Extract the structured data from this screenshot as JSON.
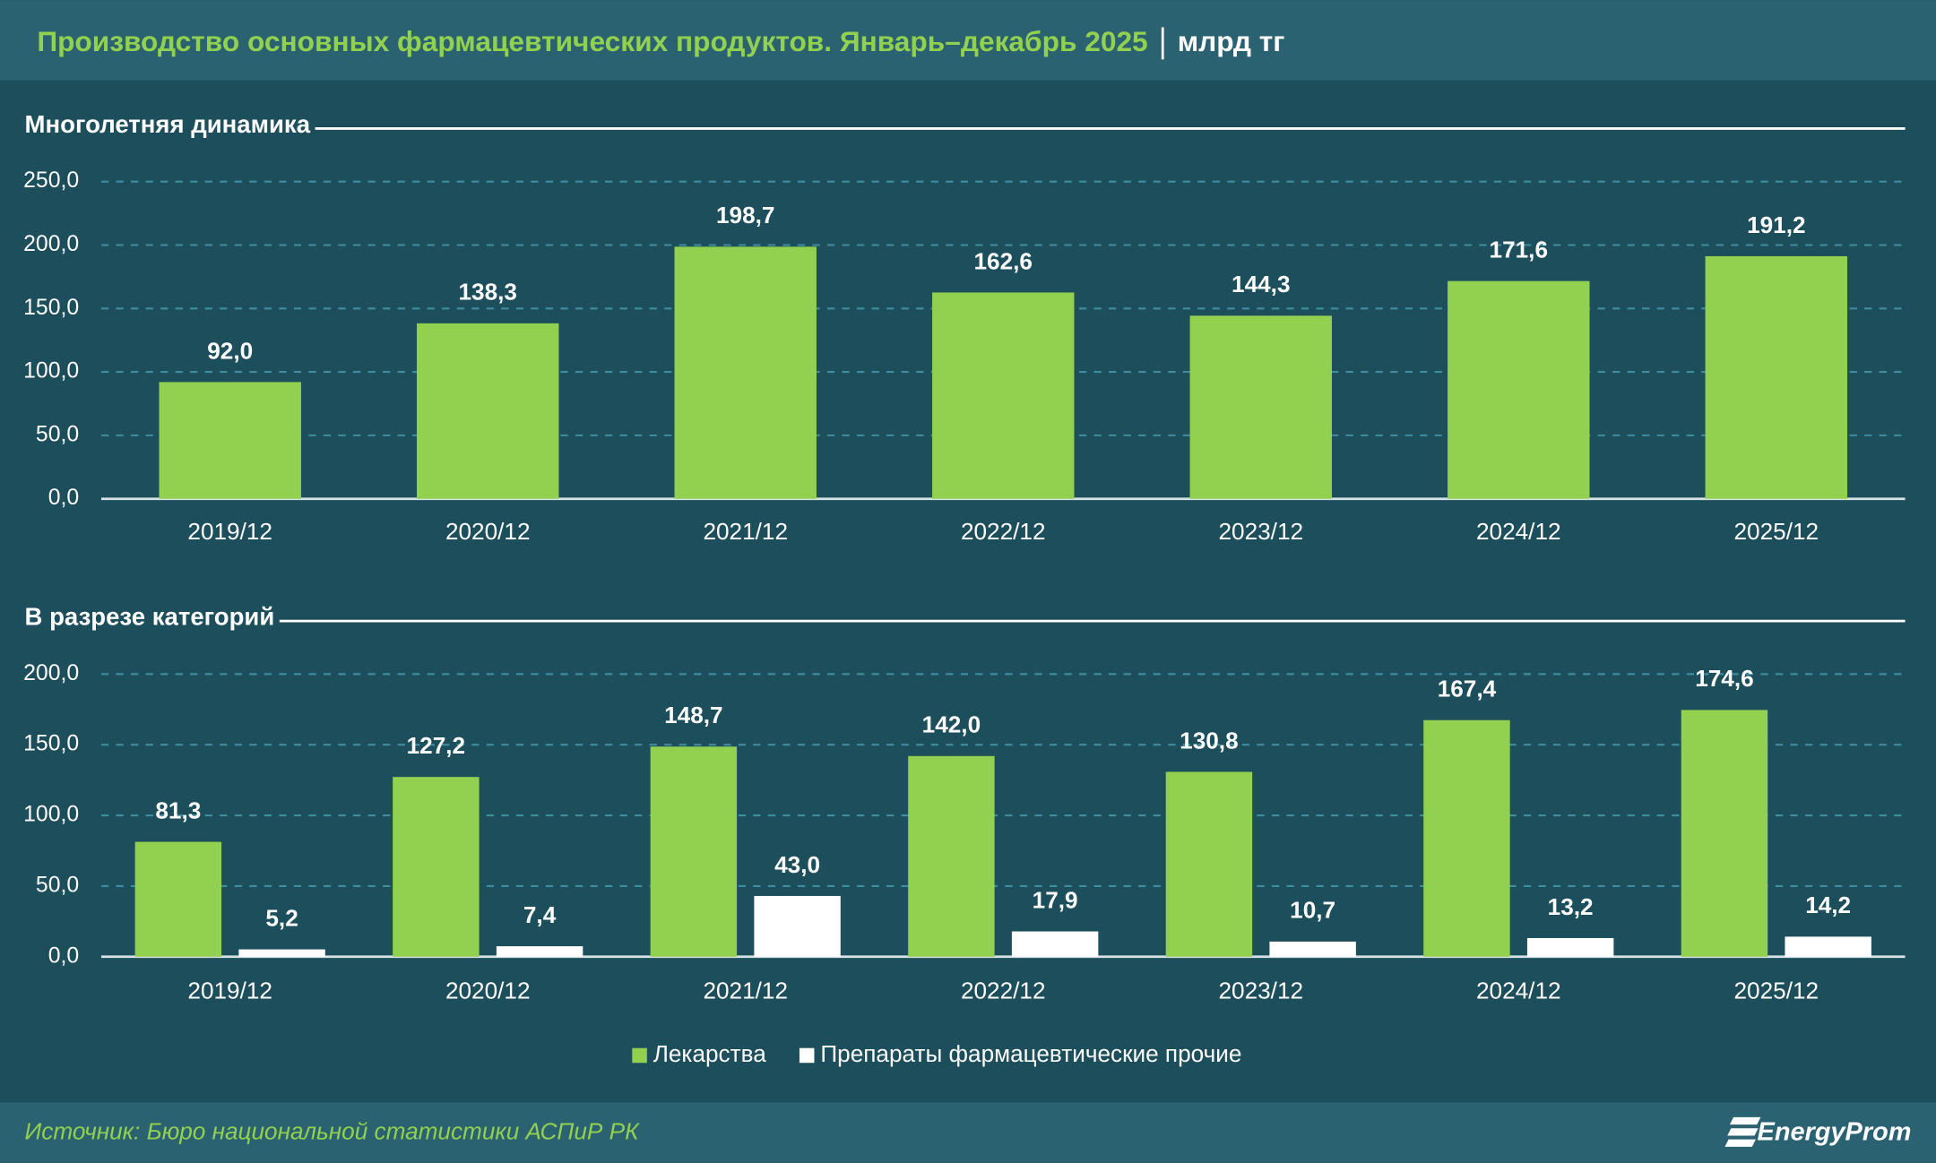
{
  "header": {
    "title": "Производство основных фармацевтических продуктов. Январь–декабрь 2025",
    "unit": "млрд тг"
  },
  "chart_data": [
    {
      "type": "bar",
      "title": "Многолетняя динамика",
      "categories": [
        "2019/12",
        "2020/12",
        "2021/12",
        "2022/12",
        "2023/12",
        "2024/12",
        "2025/12"
      ],
      "values": [
        92.0,
        138.3,
        198.7,
        162.6,
        144.3,
        171.6,
        191.2
      ],
      "value_labels": [
        "92,0",
        "138,3",
        "198,7",
        "162,6",
        "144,3",
        "171,6",
        "191,2"
      ],
      "color": "#92d050",
      "ylim": [
        0,
        250
      ],
      "yticks": [
        {
          "value": 0,
          "label": "0,0"
        },
        {
          "value": 50,
          "label": "50,0"
        },
        {
          "value": 100,
          "label": "100,0"
        },
        {
          "value": 150,
          "label": "150,0"
        },
        {
          "value": 200,
          "label": "200,0"
        },
        {
          "value": 250,
          "label": "250,0"
        }
      ],
      "grid": true
    },
    {
      "type": "bar",
      "title": "В разрезе категорий",
      "categories": [
        "2019/12",
        "2020/12",
        "2021/12",
        "2022/12",
        "2023/12",
        "2024/12",
        "2025/12"
      ],
      "series": [
        {
          "name": "Лекарства",
          "color": "#92d050",
          "values": [
            81.3,
            127.2,
            148.7,
            142.0,
            130.8,
            167.4,
            174.6
          ],
          "value_labels": [
            "81,3",
            "127,2",
            "148,7",
            "142,0",
            "130,8",
            "167,4",
            "174,6"
          ]
        },
        {
          "name": "Препараты фармацевтические прочие",
          "color": "#ffffff",
          "values": [
            5.2,
            7.4,
            43.0,
            17.9,
            10.7,
            13.2,
            14.2
          ],
          "value_labels": [
            "5,2",
            "7,4",
            "43,0",
            "17,9",
            "10,7",
            "13,2",
            "14,2"
          ]
        }
      ],
      "ylim": [
        0,
        200
      ],
      "yticks": [
        {
          "value": 0,
          "label": "0,0"
        },
        {
          "value": 50,
          "label": "50,0"
        },
        {
          "value": 100,
          "label": "100,0"
        },
        {
          "value": 150,
          "label": "150,0"
        },
        {
          "value": 200,
          "label": "200,0"
        }
      ],
      "grid": true,
      "legend": "bottom"
    }
  ],
  "footer": {
    "source": "Источник: Бюро национальной статистики АСПиР РК",
    "brand": "EnergyProm"
  }
}
